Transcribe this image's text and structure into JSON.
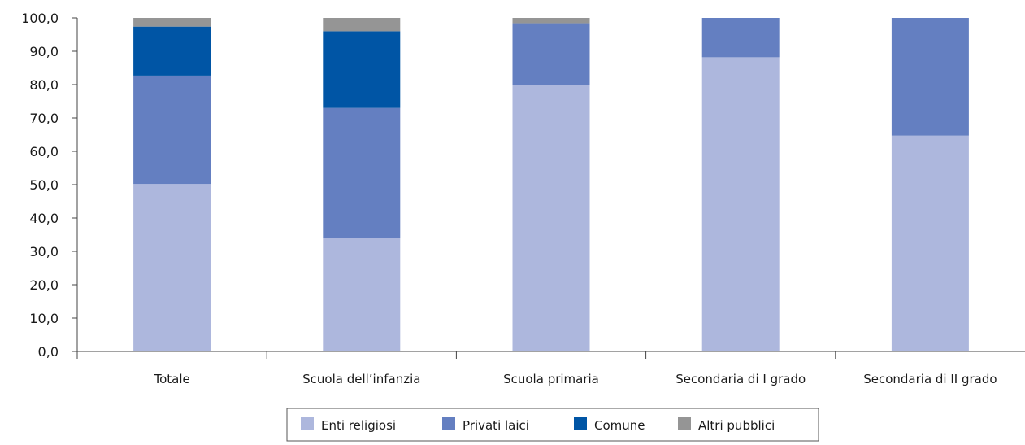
{
  "chart_data": {
    "type": "bar",
    "stacked": true,
    "title": "",
    "xlabel": "",
    "ylabel": "",
    "ylim": [
      0,
      100
    ],
    "grid": false,
    "legend_position": "bottom",
    "categories": [
      "Totale",
      "Scuola dell’infanzia",
      "Scuola primaria",
      "Secondaria di I grado",
      "Secondaria di II grado"
    ],
    "y_ticks": [
      "0,0",
      "10,0",
      "20,0",
      "30,0",
      "40,0",
      "50,0",
      "60,0",
      "70,0",
      "80,0",
      "90,0",
      "100,0"
    ],
    "series": [
      {
        "name": "Enti religiosi",
        "color": "#adb7dd",
        "values": [
          50.2,
          34.0,
          80.0,
          88.2,
          64.7
        ]
      },
      {
        "name": "Privati laici",
        "color": "#647fc1",
        "values": [
          32.5,
          39.0,
          18.4,
          11.8,
          35.3
        ]
      },
      {
        "name": "Comune",
        "color": "#0055a5",
        "values": [
          14.7,
          23.0,
          0.0,
          0.0,
          0.0
        ]
      },
      {
        "name": "Altri pubblici",
        "color": "#959595",
        "values": [
          2.6,
          4.0,
          1.6,
          0.0,
          0.0
        ]
      }
    ]
  }
}
